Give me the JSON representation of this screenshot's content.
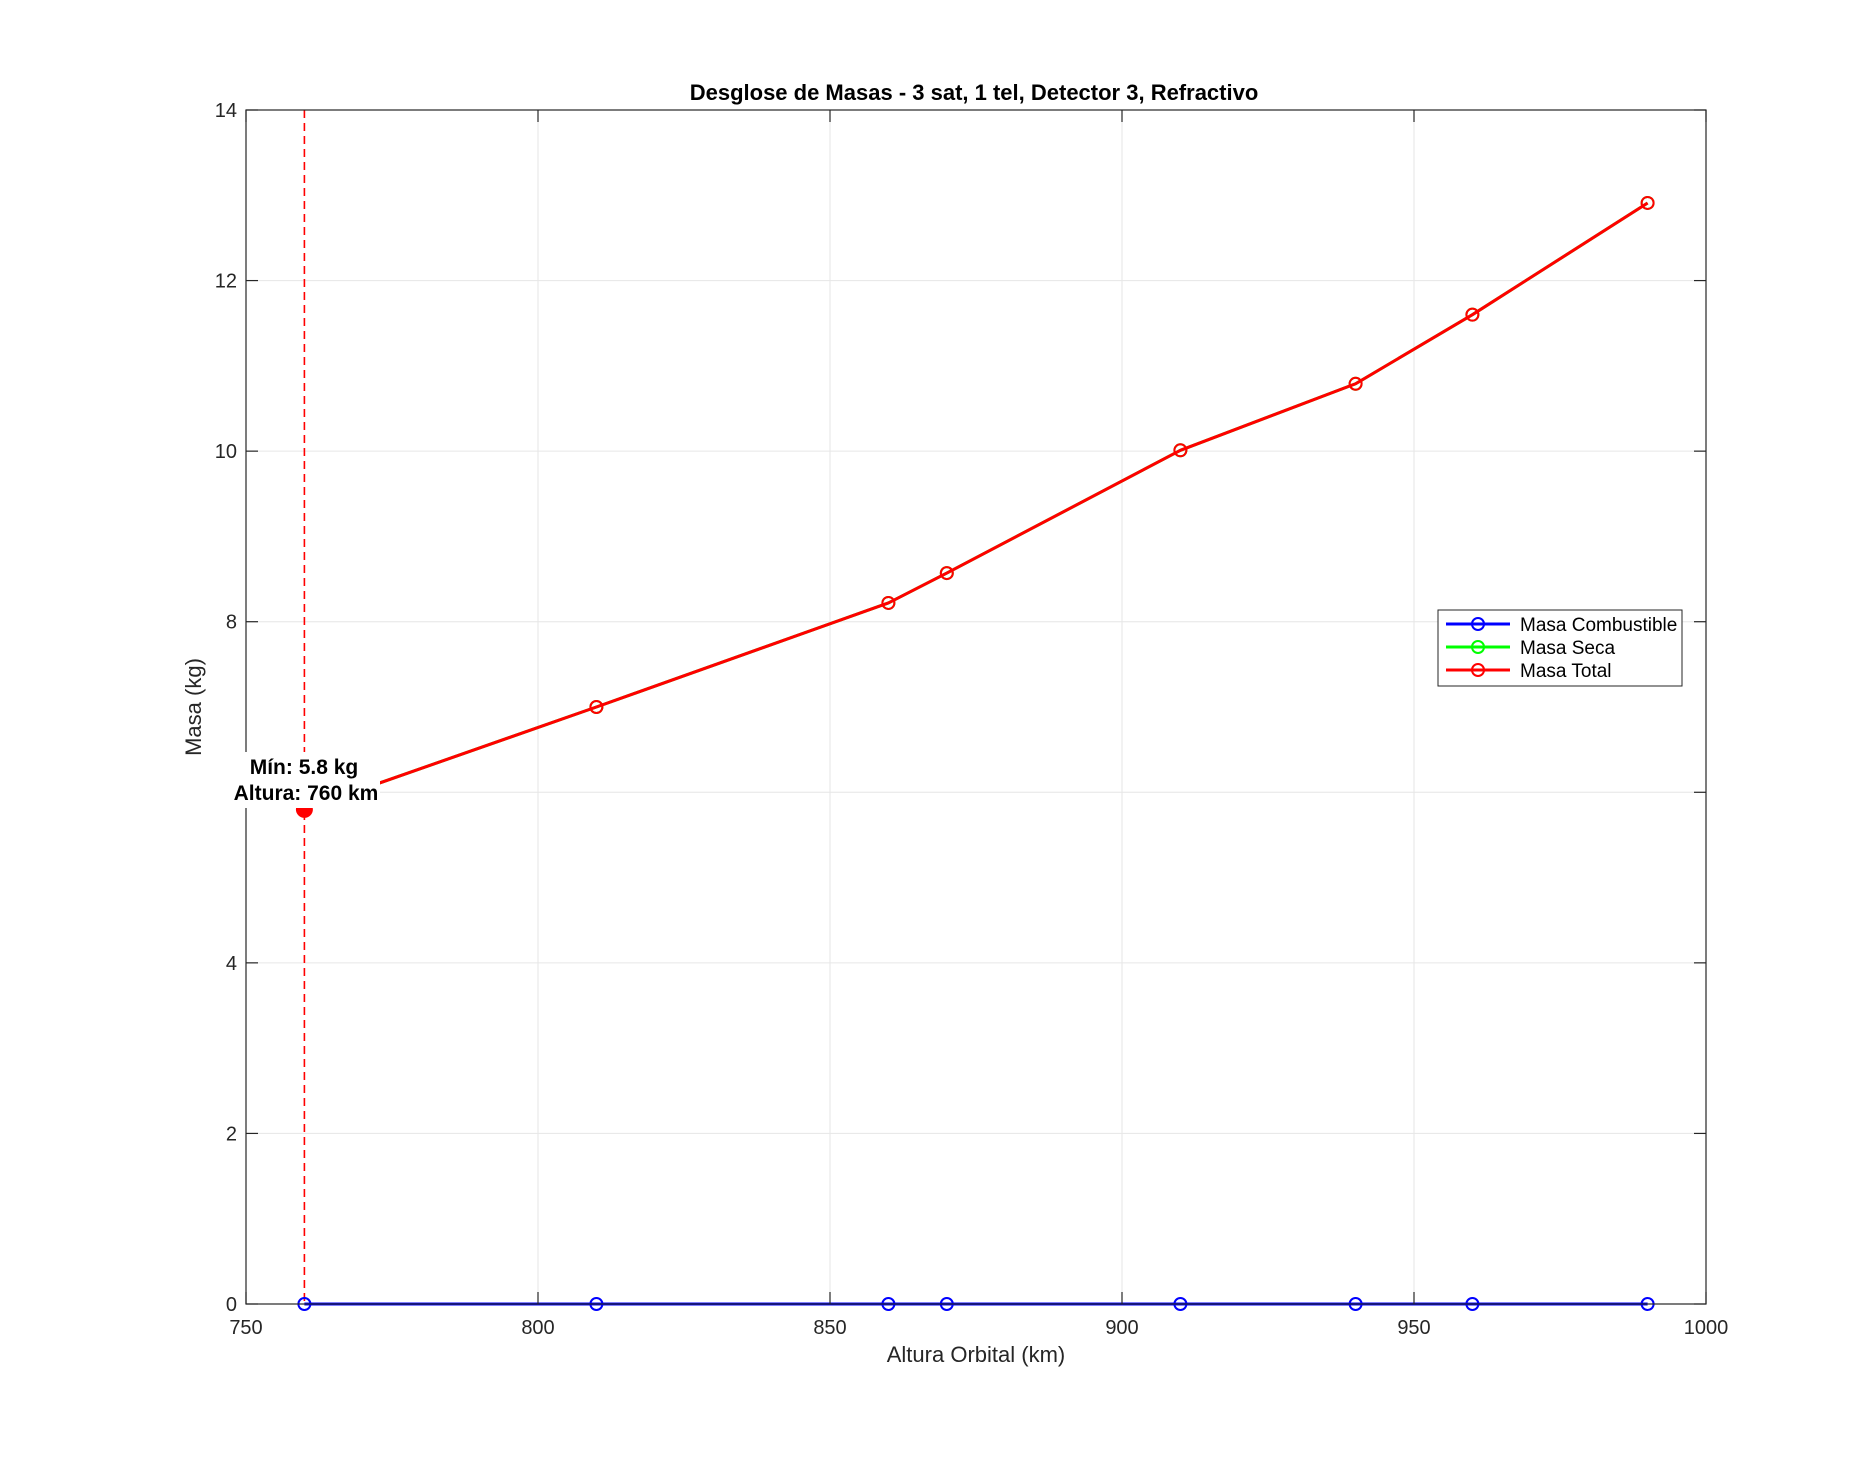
{
  "chart_data": {
    "type": "line",
    "title": "Desglose de Masas - 3 sat, 1 tel, Detector 3, Refractivo",
    "xlabel": "Altura Orbital (km)",
    "ylabel": "Masa (kg)",
    "xlim": [
      750,
      1000
    ],
    "ylim": [
      0,
      14
    ],
    "xticks": [
      750,
      800,
      850,
      900,
      950,
      1000
    ],
    "yticks": [
      0,
      2,
      4,
      8,
      10,
      12,
      14
    ],
    "grid": true,
    "legend_position": "right",
    "x": [
      760,
      810,
      860,
      870,
      910,
      940,
      960,
      990
    ],
    "series": [
      {
        "name": "Masa Combustible",
        "color": "#0000ff",
        "values": [
          0,
          0,
          0,
          0,
          0,
          0,
          0,
          0
        ]
      },
      {
        "name": "Masa Seca",
        "color": "#00ff00",
        "values": [
          5.8,
          7.0,
          8.22,
          8.57,
          10.01,
          10.79,
          11.6,
          12.91
        ]
      },
      {
        "name": "Masa Total",
        "color": "#ff0000",
        "values": [
          5.8,
          7.0,
          8.22,
          8.57,
          10.01,
          10.79,
          11.6,
          12.91
        ]
      }
    ],
    "vline": {
      "x": 760,
      "color": "#ff0000",
      "style": "dashed"
    },
    "min_marker": {
      "x": 760,
      "y": 5.8,
      "color": "#ff0000"
    },
    "annotations": [
      "Mín: 5.8 kg",
      "Altura: 760 km"
    ]
  }
}
